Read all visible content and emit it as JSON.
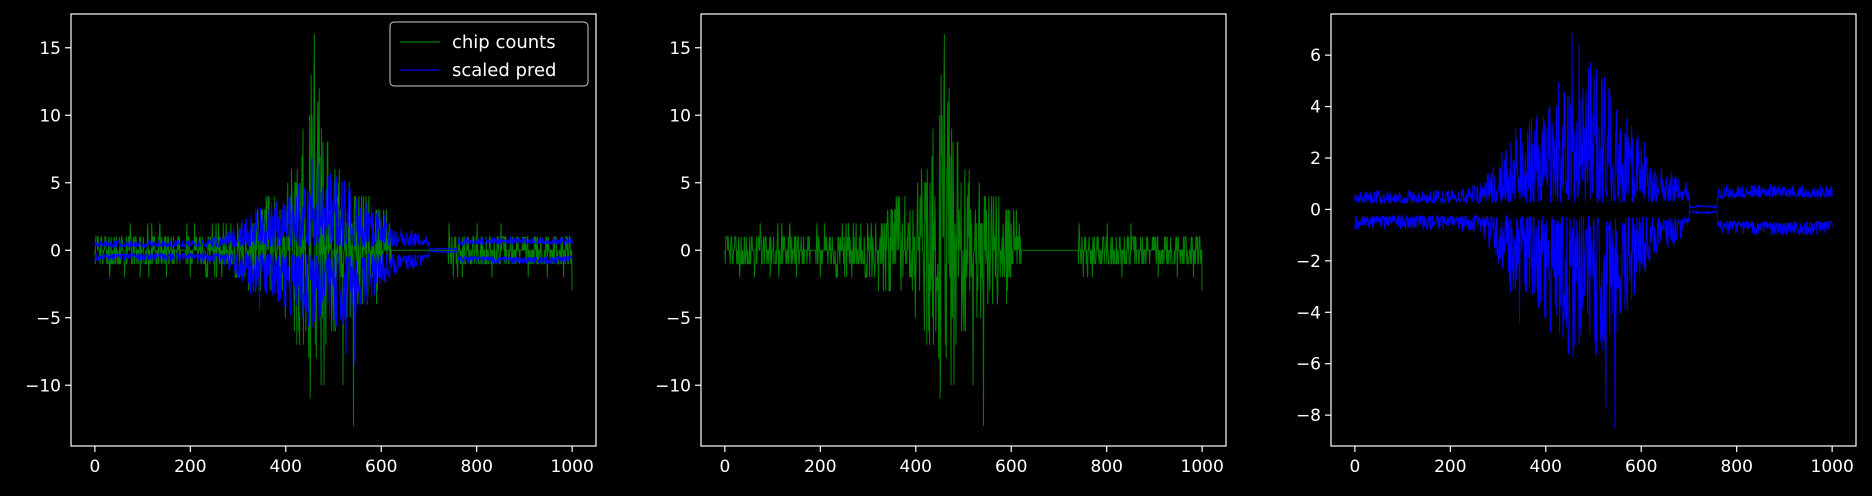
{
  "figure": {
    "background": "#000000",
    "foreground": "#ffffff"
  },
  "chart_data": [
    {
      "type": "line",
      "xlim": [
        -50,
        1050
      ],
      "ylim": [
        -14.5,
        17.5
      ],
      "xticks": [
        0,
        200,
        400,
        600,
        800,
        1000
      ],
      "yticks": [
        -10,
        -5,
        0,
        5,
        10,
        15
      ],
      "legend": {
        "placement": "top-right",
        "entries": [
          "chip counts",
          "scaled pred"
        ]
      },
      "series": [
        {
          "name": "chip counts",
          "color": "#008000",
          "kind": "counts",
          "positive_peak": 16,
          "negative_peak": -13,
          "x_range": [
            0,
            1000
          ]
        },
        {
          "name": "scaled pred",
          "color": "#0000ff",
          "kind": "pred",
          "positive_peak": 7,
          "negative_peak": -8.5,
          "x_range": [
            0,
            1000
          ]
        }
      ]
    },
    {
      "type": "line",
      "xlim": [
        -50,
        1050
      ],
      "ylim": [
        -14.5,
        17.5
      ],
      "xticks": [
        0,
        200,
        400,
        600,
        800,
        1000
      ],
      "yticks": [
        -10,
        -5,
        0,
        5,
        10,
        15
      ],
      "series": [
        {
          "color": "#008000",
          "kind": "counts",
          "positive_peak": 16,
          "negative_peak": -13,
          "x_range": [
            0,
            1000
          ]
        }
      ]
    },
    {
      "type": "line",
      "xlim": [
        -50,
        1050
      ],
      "ylim": [
        -9.2,
        7.6
      ],
      "xticks": [
        0,
        200,
        400,
        600,
        800,
        1000
      ],
      "yticks": [
        -8,
        -6,
        -4,
        -2,
        0,
        2,
        4,
        6
      ],
      "series": [
        {
          "color": "#0000ff",
          "kind": "pred",
          "positive_peak": 7,
          "negative_peak": -8.5,
          "x_range": [
            0,
            1000
          ]
        }
      ]
    }
  ]
}
